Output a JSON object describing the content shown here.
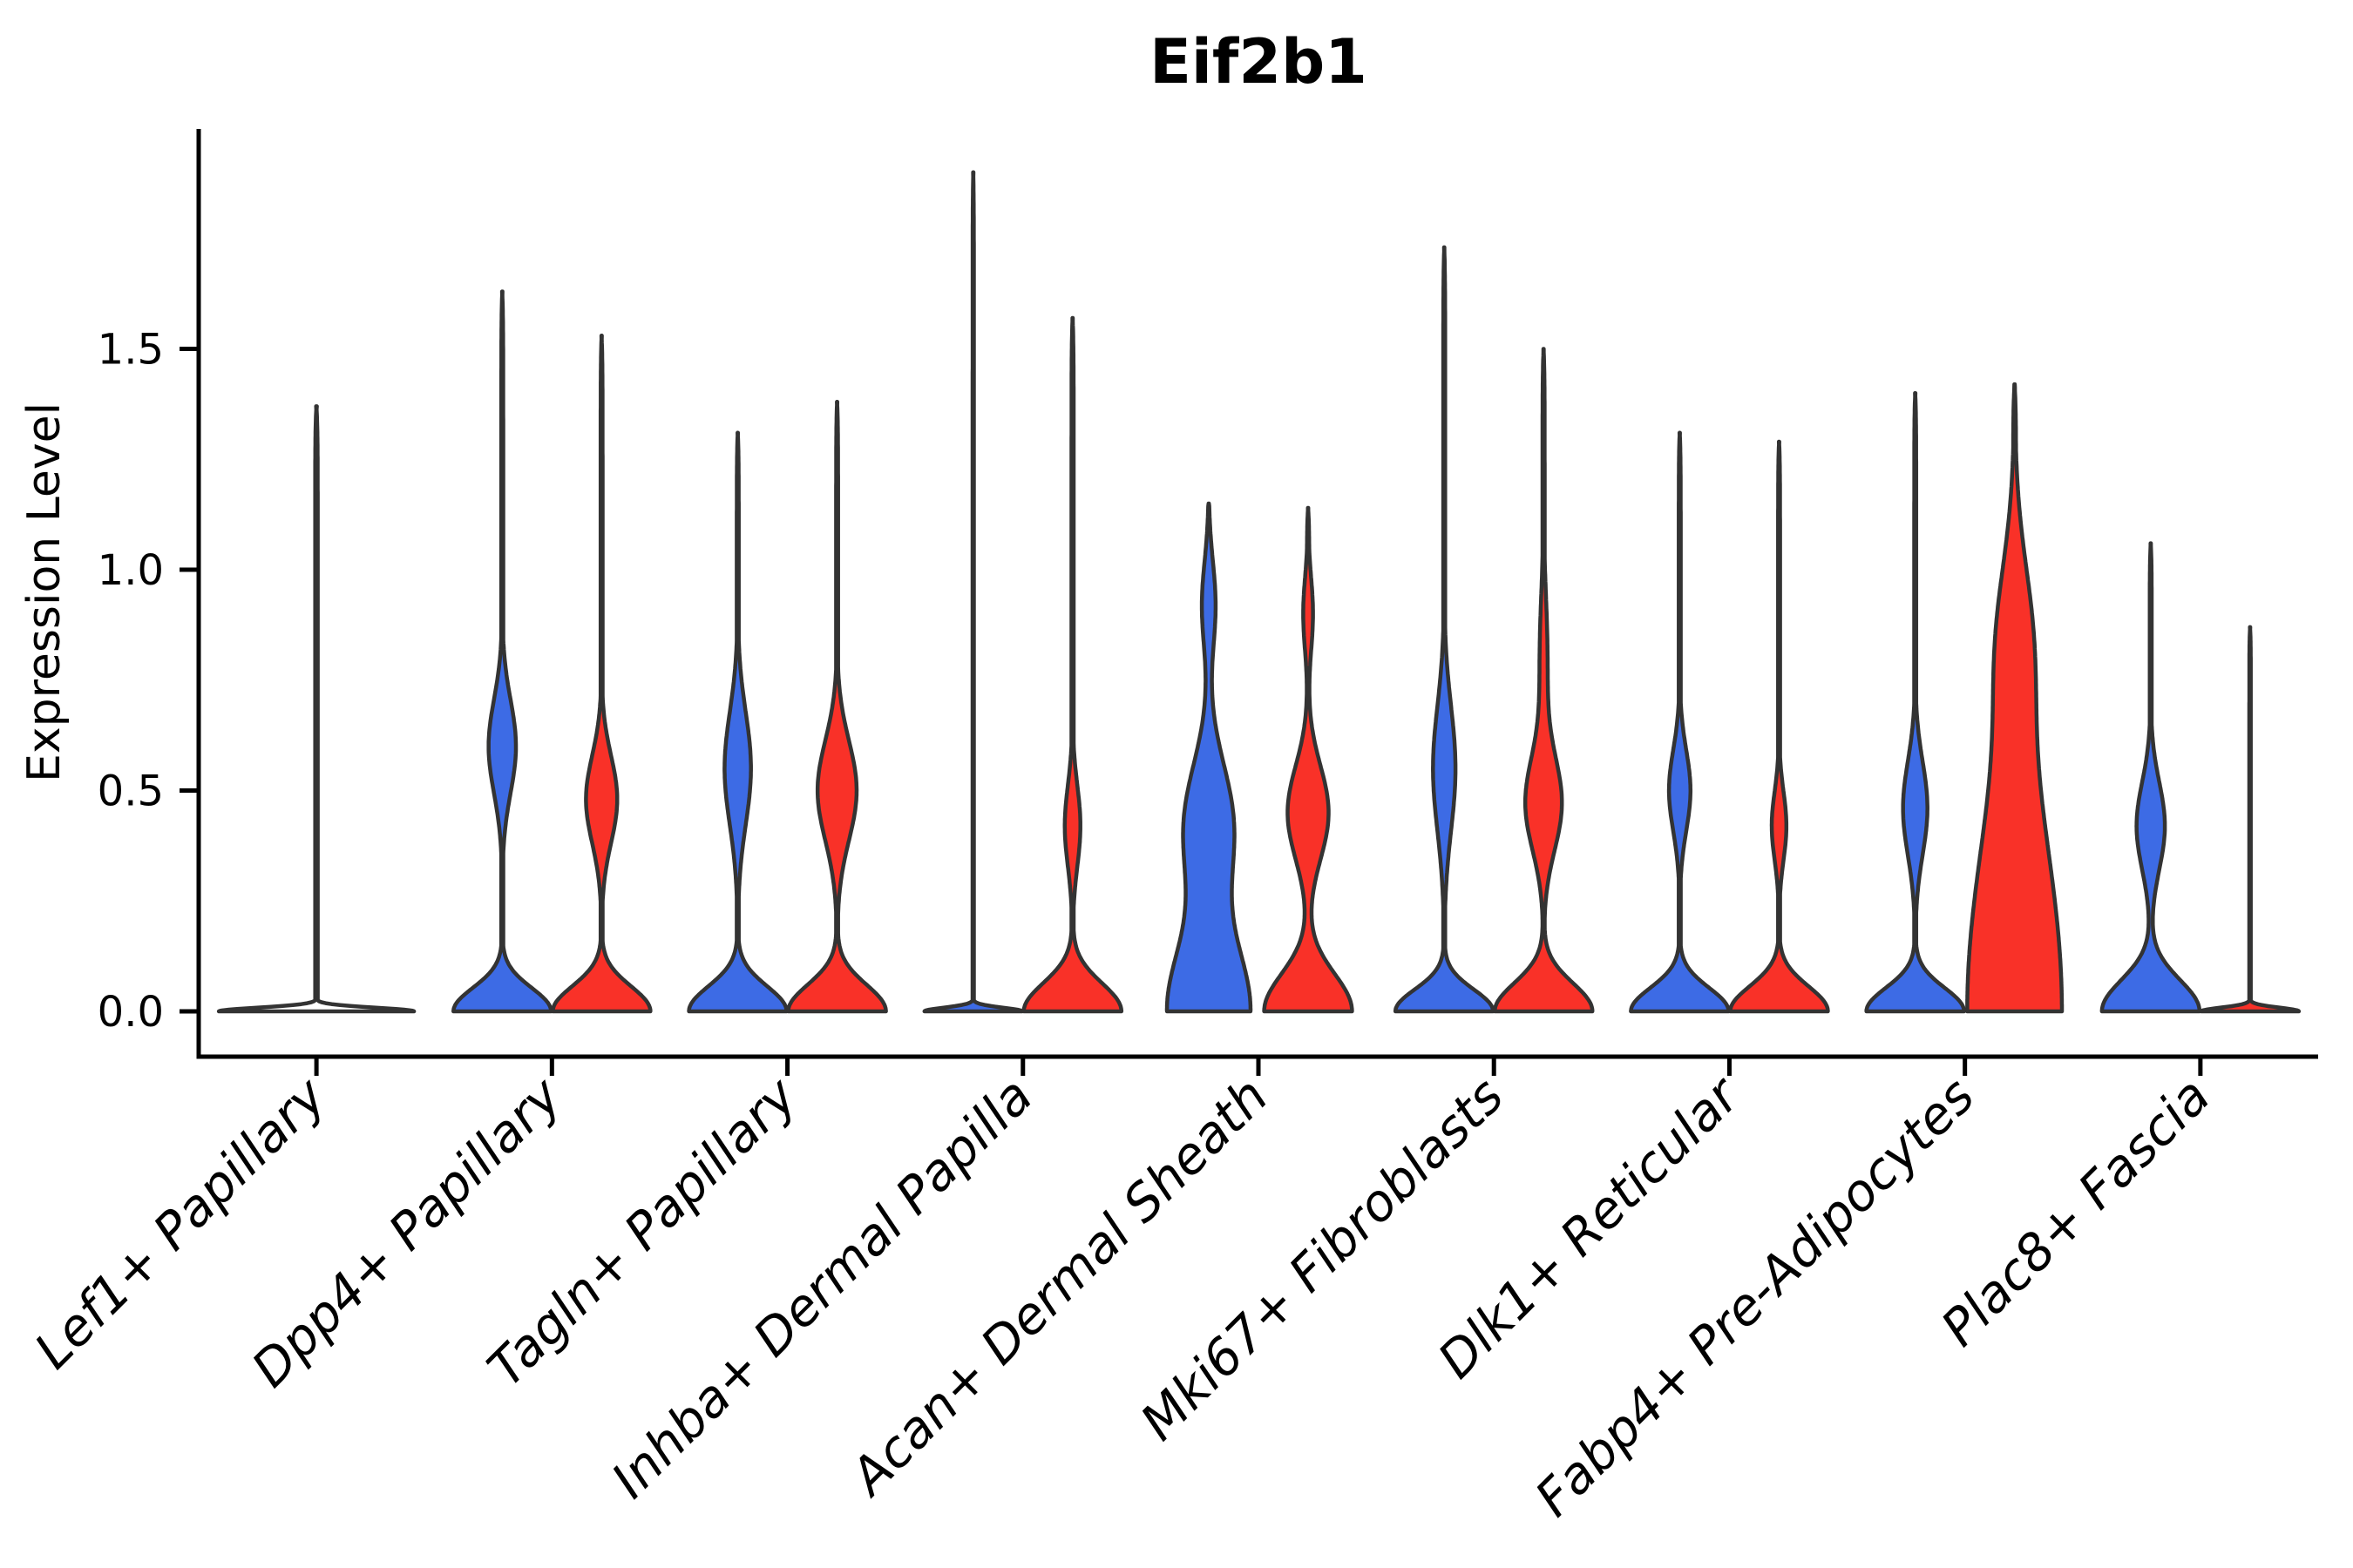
{
  "title": "Eif2b1",
  "y_axis": {
    "label": "Expression Level",
    "tick_labels": [
      "0.0",
      "0.5",
      "1.0",
      "1.5"
    ],
    "tick_values": [
      0.0,
      0.5,
      1.0,
      1.5
    ]
  },
  "colors": {
    "blue_fill": "#3D6BE5",
    "red_fill": "#F93128",
    "violin_outline": "#333333",
    "axis": "#000000",
    "background": "#ffffff"
  },
  "chart_data": {
    "type": "violin",
    "title": "Eif2b1",
    "xlabel": "",
    "ylabel": "Expression Level",
    "ylim": [
      0,
      2.0
    ],
    "yticks": [
      0.0,
      0.5,
      1.0,
      1.5
    ],
    "grid": false,
    "legend": "none",
    "split_groups": [
      "blue (left violin)",
      "red (right violin)"
    ],
    "categories": [
      "Lef1+ Papillary",
      "Dpp4+ Papillary",
      "Tagln+ Papillary",
      "Inhba+ Dermal Papilla",
      "Acan+ Dermal Sheath",
      "Mki67+ Fibroblasts",
      "Dlk1+ Reticular",
      "Fabp4+ Pre-Adipocytes",
      "Plac8+ Fascia"
    ],
    "violins": [
      {
        "category": "Lef1+ Papillary",
        "pair": [
          {
            "group": "single",
            "color": "none",
            "width": "full",
            "flat": true,
            "max_expression": 1.37,
            "shape": {
              "bumps": [
                {
                  "a": 1.0,
                  "mu": 0,
                  "sigma": 0.012
                }
              ],
              "tail": 0.013
            }
          }
        ]
      },
      {
        "category": "Dpp4+ Papillary",
        "pair": [
          {
            "group": "blue",
            "color": "blue",
            "width": "half",
            "flat": false,
            "max_expression": 1.63,
            "shape": {
              "bumps": [
                {
                  "a": 1.0,
                  "mu": 0,
                  "sigma": 0.075
                },
                {
                  "a": 0.28,
                  "mu": 0.6,
                  "sigma": 0.15
                }
              ],
              "tail": 0.02
            }
          },
          {
            "group": "red",
            "color": "red",
            "width": "half",
            "flat": false,
            "max_expression": 1.53,
            "shape": {
              "bumps": [
                {
                  "a": 1.0,
                  "mu": 0,
                  "sigma": 0.08
                },
                {
                  "a": 0.32,
                  "mu": 0.48,
                  "sigma": 0.14
                }
              ],
              "tail": 0.02
            }
          }
        ]
      },
      {
        "category": "Tagln+ Papillary",
        "pair": [
          {
            "group": "blue",
            "color": "blue",
            "width": "half",
            "flat": false,
            "max_expression": 1.31,
            "shape": {
              "bumps": [
                {
                  "a": 1.0,
                  "mu": 0,
                  "sigma": 0.08
                },
                {
                  "a": 0.27,
                  "mu": 0.55,
                  "sigma": 0.18
                }
              ],
              "tail": 0.02
            }
          },
          {
            "group": "red",
            "color": "red",
            "width": "half",
            "flat": false,
            "max_expression": 1.38,
            "shape": {
              "bumps": [
                {
                  "a": 1.0,
                  "mu": 0,
                  "sigma": 0.085
                },
                {
                  "a": 0.4,
                  "mu": 0.5,
                  "sigma": 0.16
                }
              ],
              "tail": 0.02
            }
          }
        ]
      },
      {
        "category": "Inhba+ Dermal Papilla",
        "pair": [
          {
            "group": "blue",
            "color": "blue",
            "width": "half",
            "flat": true,
            "max_expression": 1.9,
            "shape": {
              "bumps": [
                {
                  "a": 1.0,
                  "mu": 0,
                  "sigma": 0.012
                }
              ],
              "tail": 0.013
            }
          },
          {
            "group": "red",
            "color": "red",
            "width": "half",
            "flat": false,
            "max_expression": 1.57,
            "shape": {
              "bumps": [
                {
                  "a": 1.0,
                  "mu": 0,
                  "sigma": 0.09
                },
                {
                  "a": 0.16,
                  "mu": 0.42,
                  "sigma": 0.13
                }
              ],
              "tail": 0.022
            }
          }
        ]
      },
      {
        "category": "Acan+ Dermal Sheath",
        "pair": [
          {
            "group": "blue",
            "color": "blue",
            "width": "half",
            "flat": false,
            "max_expression": 1.15,
            "shape": {
              "bumps": [
                {
                  "a": 0.85,
                  "mu": 0,
                  "sigma": 0.22
                },
                {
                  "a": 0.5,
                  "mu": 0.42,
                  "sigma": 0.2
                },
                {
                  "a": 0.14,
                  "mu": 0.92,
                  "sigma": 0.14
                }
              ],
              "tail": 0.025
            }
          },
          {
            "group": "red",
            "color": "red",
            "width": "half",
            "flat": false,
            "max_expression": 1.14,
            "shape": {
              "bumps": [
                {
                  "a": 0.9,
                  "mu": 0,
                  "sigma": 0.12
                },
                {
                  "a": 0.42,
                  "mu": 0.45,
                  "sigma": 0.15
                },
                {
                  "a": 0.1,
                  "mu": 0.9,
                  "sigma": 0.12
                }
              ],
              "tail": 0.025
            }
          }
        ]
      },
      {
        "category": "Mki67+ Fibroblasts",
        "pair": [
          {
            "group": "blue",
            "color": "blue",
            "width": "half",
            "flat": false,
            "max_expression": 1.73,
            "shape": {
              "bumps": [
                {
                  "a": 1.0,
                  "mu": 0,
                  "sigma": 0.07
                },
                {
                  "a": 0.23,
                  "mu": 0.55,
                  "sigma": 0.2
                }
              ],
              "tail": 0.02
            }
          },
          {
            "group": "red",
            "color": "red",
            "width": "half",
            "flat": false,
            "max_expression": 1.5,
            "shape": {
              "bumps": [
                {
                  "a": 1.0,
                  "mu": 0,
                  "sigma": 0.09
                },
                {
                  "a": 0.37,
                  "mu": 0.47,
                  "sigma": 0.15
                },
                {
                  "a": 0.08,
                  "mu": 0.8,
                  "sigma": 0.2
                }
              ],
              "tail": 0.022
            }
          }
        ]
      },
      {
        "category": "Dlk1+ Reticular",
        "pair": [
          {
            "group": "blue",
            "color": "blue",
            "width": "half",
            "flat": false,
            "max_expression": 1.31,
            "shape": {
              "bumps": [
                {
                  "a": 1.0,
                  "mu": 0,
                  "sigma": 0.075
                },
                {
                  "a": 0.22,
                  "mu": 0.5,
                  "sigma": 0.13
                }
              ],
              "tail": 0.02
            }
          },
          {
            "group": "red",
            "color": "red",
            "width": "half",
            "flat": false,
            "max_expression": 1.29,
            "shape": {
              "bumps": [
                {
                  "a": 1.0,
                  "mu": 0,
                  "sigma": 0.08
                },
                {
                  "a": 0.15,
                  "mu": 0.42,
                  "sigma": 0.11
                }
              ],
              "tail": 0.02
            }
          }
        ]
      },
      {
        "category": "Fabp4+ Pre-Adipocytes",
        "pair": [
          {
            "group": "blue",
            "color": "blue",
            "width": "half",
            "flat": false,
            "max_expression": 1.4,
            "shape": {
              "bumps": [
                {
                  "a": 1.0,
                  "mu": 0,
                  "sigma": 0.075
                },
                {
                  "a": 0.25,
                  "mu": 0.46,
                  "sigma": 0.15
                }
              ],
              "tail": 0.02
            }
          },
          {
            "group": "red",
            "color": "red",
            "width": "half",
            "flat": false,
            "max_expression": 1.42,
            "shape": {
              "bumps": [
                {
                  "a": 0.97,
                  "mu": 0,
                  "sigma": 0.62
                },
                {
                  "a": 0.25,
                  "mu": 0.85,
                  "sigma": 0.25
                }
              ],
              "tail": 0.03
            }
          }
        ]
      },
      {
        "category": "Plac8+ Fascia",
        "pair": [
          {
            "group": "blue",
            "color": "blue",
            "width": "half",
            "flat": false,
            "max_expression": 1.06,
            "shape": {
              "bumps": [
                {
                  "a": 1.0,
                  "mu": 0,
                  "sigma": 0.1
                },
                {
                  "a": 0.29,
                  "mu": 0.42,
                  "sigma": 0.14
                }
              ],
              "tail": 0.02
            }
          },
          {
            "group": "red",
            "color": "red",
            "width": "half",
            "flat": true,
            "max_expression": 0.87,
            "shape": {
              "bumps": [
                {
                  "a": 1.0,
                  "mu": 0,
                  "sigma": 0.012
                }
              ],
              "tail": 0.015
            }
          }
        ]
      }
    ]
  }
}
